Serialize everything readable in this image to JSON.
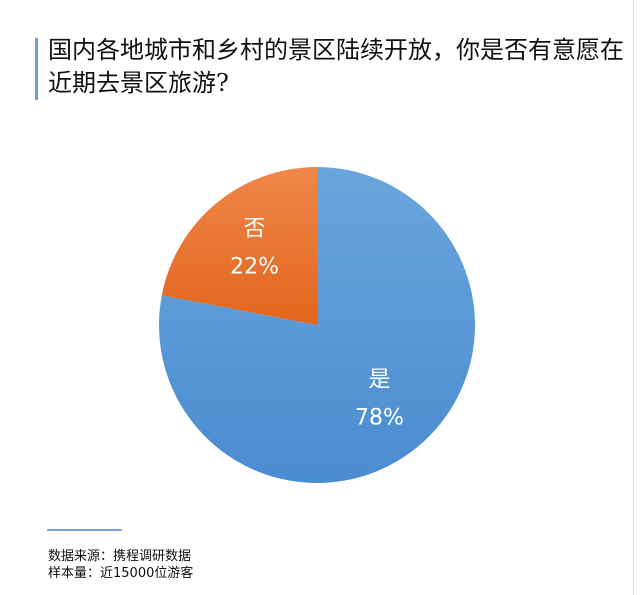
{
  "title": "国内各地城市和乡村的景区陆续开放，你是否有意愿在近期去景区旅游?",
  "chart_data": {
    "type": "pie",
    "title": "国内各地城市和乡村的景区陆续开放，你是否有意愿在近期去景区旅游?",
    "categories": [
      "是",
      "否"
    ],
    "values": [
      78,
      22
    ],
    "labels": [
      "78%",
      "22%"
    ],
    "colors": [
      "#5b9bd5",
      "#ed7d31"
    ],
    "legend": "none"
  },
  "footer": {
    "source": "数据来源：携程调研数据",
    "sample": "样本量：近15000位游客"
  }
}
